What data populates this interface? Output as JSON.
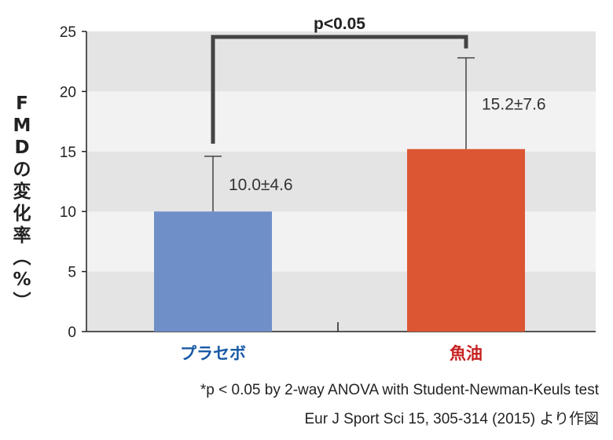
{
  "chart_data": {
    "type": "bar",
    "categories": [
      "プラセボ",
      "魚油"
    ],
    "values": [
      10.0,
      15.2
    ],
    "errors": [
      4.6,
      7.6
    ],
    "value_labels": [
      "10.0±4.6",
      "15.2±7.6"
    ],
    "ylabel": "FMDの変化率（%）",
    "ylim": [
      0,
      25
    ],
    "yticks": [
      0,
      5,
      10,
      15,
      20,
      25
    ],
    "grid": "alternating horizontal bands",
    "significance_label": "p<0.05",
    "colors": {
      "bars": [
        "#6f8fc8",
        "#dc5633"
      ],
      "category_text": [
        "#1a5aa6",
        "#c82020"
      ],
      "band_dark": "#e4e4e4",
      "band_light": "#f2f2f2"
    }
  },
  "footnotes": {
    "line1": "*p < 0.05  by 2-way ANOVA  with Student-Newman-Keuls test",
    "line2": "Eur J Sport Sci 15, 305-314 (2015) より作図"
  }
}
